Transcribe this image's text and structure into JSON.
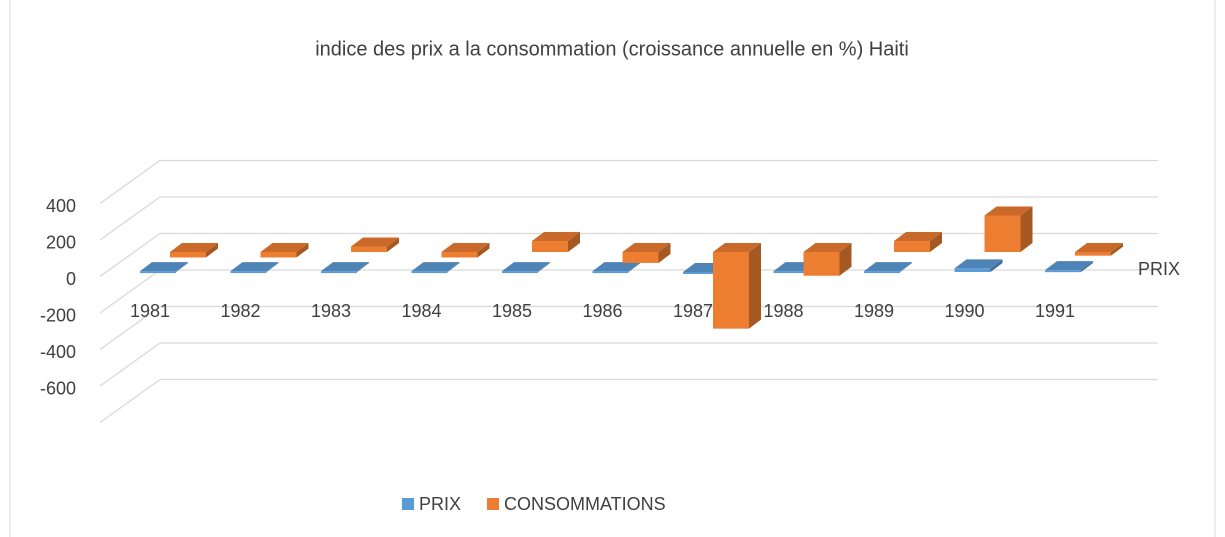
{
  "chart_data": {
    "type": "bar3d",
    "title": "indice des prix a la consommation (croissance annuelle en %) Haiti",
    "categories": [
      "1981",
      "1982",
      "1983",
      "1984",
      "1985",
      "1986",
      "1987",
      "1988",
      "1989",
      "1990",
      "1991"
    ],
    "series": [
      {
        "name": "PRIX",
        "color": "#5b9bd5",
        "values": [
          5,
          5,
          5,
          5,
          5,
          5,
          -10,
          5,
          5,
          20,
          10
        ]
      },
      {
        "name": "CONSOMMATIONS",
        "color": "#ed7d31",
        "values": [
          -30,
          -30,
          30,
          -30,
          60,
          -60,
          -420,
          -130,
          60,
          200,
          -20
        ]
      }
    ],
    "ylim": [
      -600,
      600
    ],
    "yticks": [
      -600,
      -400,
      -200,
      0,
      200,
      400
    ],
    "grid": true,
    "legend": "bottom"
  }
}
